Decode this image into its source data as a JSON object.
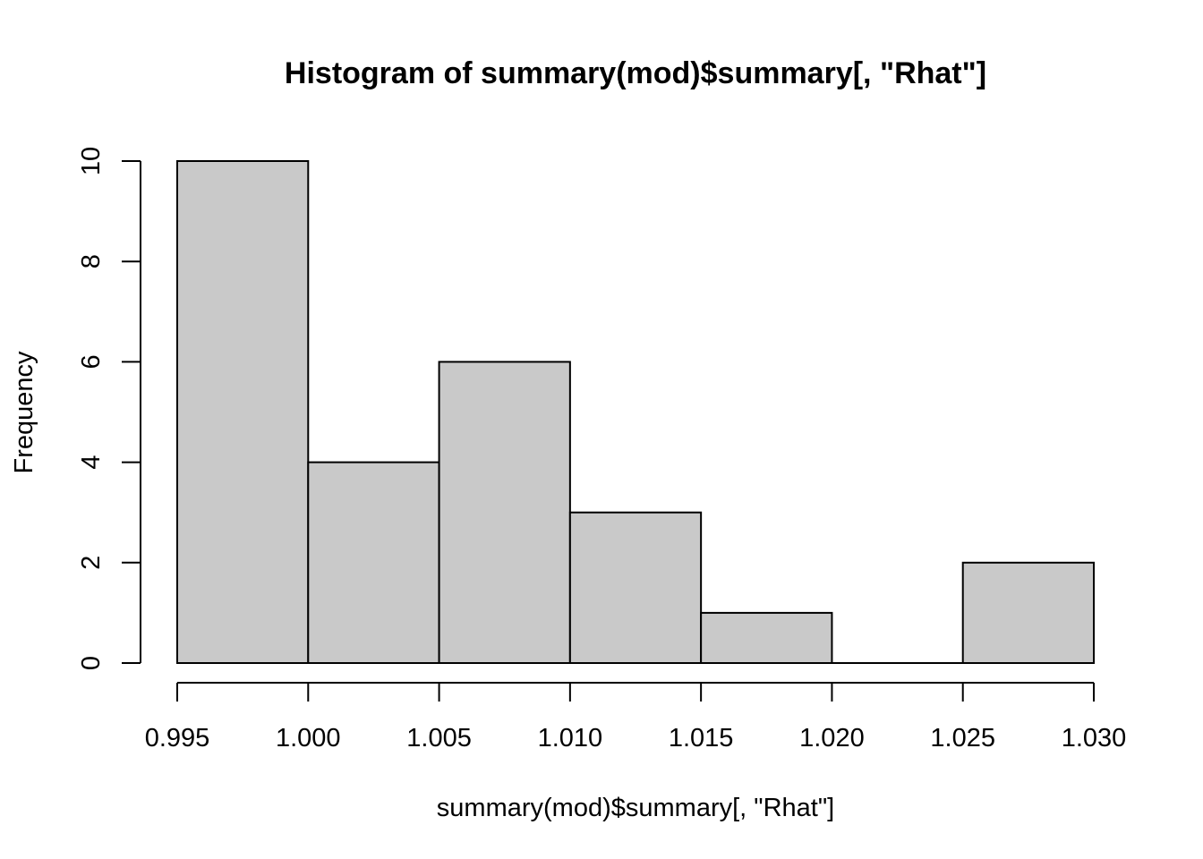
{
  "chart_data": {
    "type": "bar",
    "title": "Histogram of summary(mod)$summary[, \"Rhat\"]",
    "xlabel": "summary(mod)$summary[, \"Rhat\"]",
    "ylabel": "Frequency",
    "bins": [
      {
        "from": 0.995,
        "to": 1.0,
        "count": 10
      },
      {
        "from": 1.0,
        "to": 1.005,
        "count": 4
      },
      {
        "from": 1.005,
        "to": 1.01,
        "count": 6
      },
      {
        "from": 1.01,
        "to": 1.015,
        "count": 3
      },
      {
        "from": 1.015,
        "to": 1.02,
        "count": 1
      },
      {
        "from": 1.02,
        "to": 1.025,
        "count": 0
      },
      {
        "from": 1.025,
        "to": 1.03,
        "count": 2
      }
    ],
    "xlim": [
      0.995,
      1.03
    ],
    "ylim": [
      0,
      10
    ],
    "x_ticks": [
      "0.995",
      "1.000",
      "1.005",
      "1.010",
      "1.015",
      "1.020",
      "1.025",
      "1.030"
    ],
    "y_ticks": [
      "0",
      "2",
      "4",
      "6",
      "8",
      "10"
    ],
    "bar_color": "#c9c9c9",
    "border_color": "#000000",
    "grid": false,
    "legend": "none"
  }
}
